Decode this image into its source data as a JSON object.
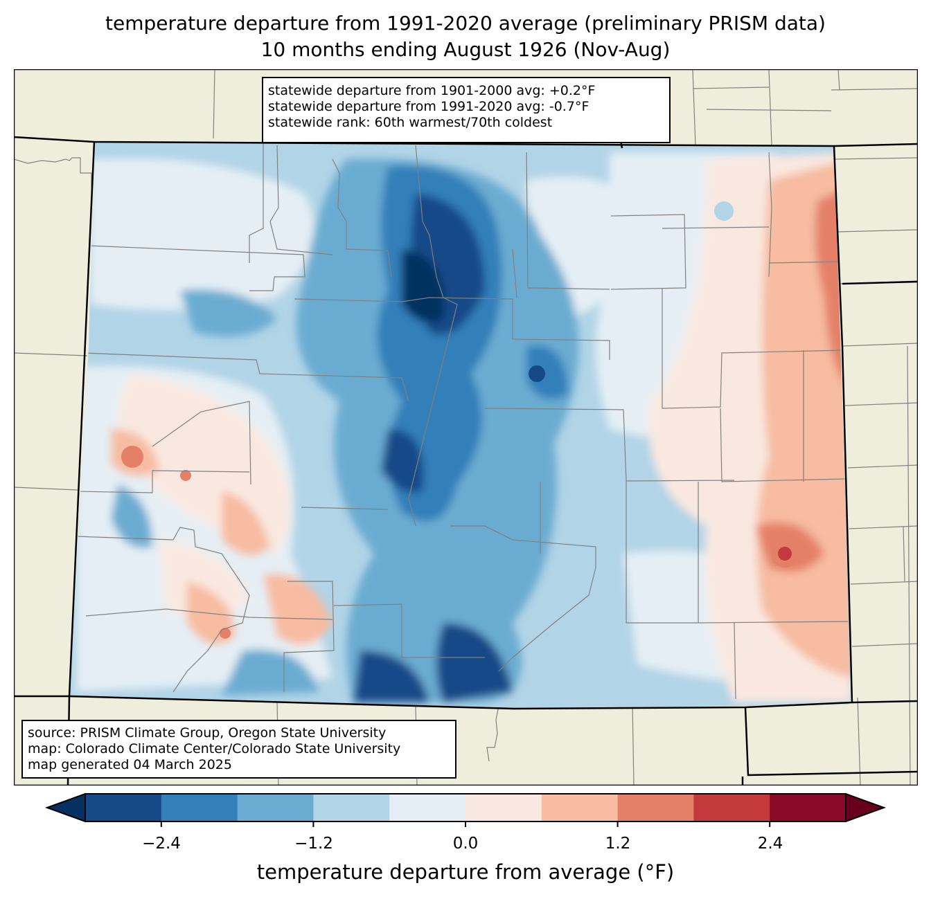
{
  "title": {
    "line1": "temperature departure from 1991-2020 average (preliminary PRISM data)",
    "line2": "10 months ending August 1926 (Nov-Aug)"
  },
  "stats_box": {
    "line1": "statewide departure from 1901-2000 avg: +0.2°F",
    "line2": "statewide departure from 1991-2020 avg: -0.7°F",
    "line3": "statewide rank: 60th warmest/70th coldest"
  },
  "source_box": {
    "line1": "source: PRISM Climate Group, Oregon State University",
    "line2": "map: Colorado Climate Center/Colorado State University",
    "line3": "map generated 04 March 2025"
  },
  "colorbar": {
    "label": "temperature departure from average (°F)",
    "ticks": [
      "−2.4",
      "−1.2",
      "0.0",
      "1.2",
      "2.4"
    ],
    "tick_values": [
      -2.4,
      -1.2,
      0.0,
      1.2,
      2.4
    ],
    "range": [
      -3.0,
      3.0
    ],
    "step": 0.6,
    "under_color": "#053061",
    "over_color": "#67001f",
    "colors": [
      "#154a87",
      "#337fb9",
      "#6aacd1",
      "#b1d4e7",
      "#e5eef4",
      "#f9e8e0",
      "#f7bca1",
      "#e58068",
      "#c4393b",
      "#880a26"
    ]
  },
  "chart_data": {
    "type": "heatmap",
    "title": "temperature departure from 1991-2020 average (preliminary PRISM data) / 10 months ending August 1926 (Nov-Aug)",
    "region": "Colorado",
    "variable": "temperature departure from average (°F)",
    "levels": [
      -3.0,
      -2.4,
      -1.8,
      -1.2,
      -0.6,
      0.0,
      0.6,
      1.2,
      1.8,
      2.4,
      3.0
    ],
    "statewide_departure_1901_2000": 0.2,
    "statewide_departure_1991_2020": -0.7,
    "rank_warmest": 60,
    "rank_coldest": 70
  },
  "map_colors": {
    "land": "#efeedc",
    "state_border": "#000000",
    "county_border": "#808080"
  }
}
